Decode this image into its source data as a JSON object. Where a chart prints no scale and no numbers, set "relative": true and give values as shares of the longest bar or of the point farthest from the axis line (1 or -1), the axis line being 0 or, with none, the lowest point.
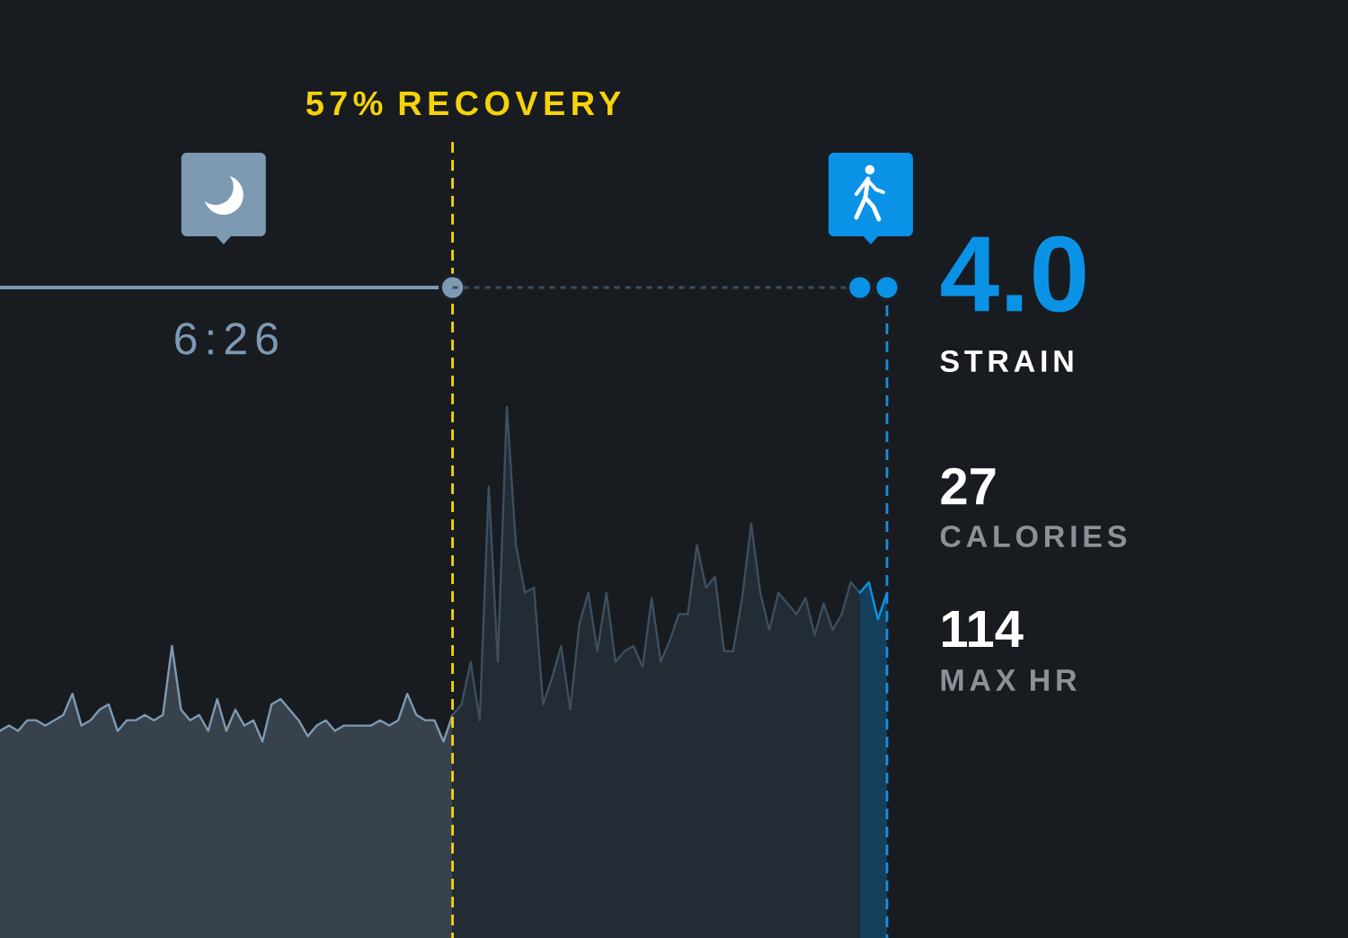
{
  "chart_data": {
    "type": "area",
    "relative": true,
    "tick_labels": false,
    "categories": [
      null,
      null,
      null,
      null,
      null,
      null,
      null,
      null,
      null,
      null,
      null,
      null,
      null,
      null,
      null,
      null,
      null,
      null,
      null,
      null,
      null,
      null,
      null,
      null,
      null,
      null,
      null,
      null,
      null,
      null,
      null,
      null,
      null,
      null,
      null,
      null,
      null,
      null,
      null,
      null,
      null,
      null,
      null,
      null,
      null,
      null,
      null,
      null,
      null,
      null,
      null,
      null,
      null,
      null,
      null,
      null,
      null,
      null,
      null,
      null,
      null,
      null,
      null,
      null,
      null,
      null,
      null,
      null,
      null,
      null,
      null,
      null,
      null,
      null,
      null,
      null,
      null,
      null,
      null,
      null,
      null,
      null,
      null,
      null,
      null,
      null,
      null,
      null,
      null,
      null,
      null,
      null,
      null,
      null,
      null,
      null,
      null,
      null,
      null
    ],
    "series": [
      {
        "color": "#7e9ab3",
        "values": [
          0.39,
          0.4,
          0.39,
          0.41,
          0.41,
          0.4,
          0.41,
          0.42,
          0.46,
          0.4,
          0.41,
          0.43,
          0.44,
          0.39,
          0.41,
          0.41,
          0.42,
          0.41,
          0.42,
          0.55,
          0.43,
          0.41,
          0.42,
          0.39,
          0.45,
          0.39,
          0.43,
          0.4,
          0.41,
          0.37,
          0.44,
          0.45,
          0.43,
          0.41,
          0.38,
          0.4,
          0.41,
          0.39,
          0.4,
          0.4,
          0.4,
          0.4,
          0.41,
          0.4,
          0.41,
          0.46,
          0.42,
          0.41,
          0.41,
          0.37,
          0.42,
          null,
          null,
          null,
          null,
          null,
          null,
          null,
          null,
          null,
          null,
          null,
          null,
          null,
          null,
          null,
          null,
          null,
          null,
          null,
          null,
          null,
          null,
          null,
          null,
          null,
          null,
          null,
          null,
          null,
          null,
          null,
          null,
          null,
          null,
          null,
          null,
          null,
          null,
          null,
          null,
          null,
          null,
          null,
          null,
          null,
          null,
          null,
          null
        ]
      },
      {
        "color": "#3d4f5f",
        "values": [
          null,
          null,
          null,
          null,
          null,
          null,
          null,
          null,
          null,
          null,
          null,
          null,
          null,
          null,
          null,
          null,
          null,
          null,
          null,
          null,
          null,
          null,
          null,
          null,
          null,
          null,
          null,
          null,
          null,
          null,
          null,
          null,
          null,
          null,
          null,
          null,
          null,
          null,
          null,
          null,
          null,
          null,
          null,
          null,
          null,
          null,
          null,
          null,
          null,
          null,
          0.42,
          0.44,
          0.52,
          0.41,
          0.85,
          0.52,
          1,
          0.74,
          0.65,
          0.66,
          0.44,
          0.49,
          0.55,
          0.43,
          0.59,
          0.65,
          0.54,
          0.65,
          0.52,
          0.54,
          0.55,
          0.51,
          0.64,
          0.52,
          0.56,
          0.61,
          0.61,
          0.74,
          0.66,
          0.68,
          0.54,
          0.54,
          0.64,
          0.78,
          0.65,
          0.58,
          0.65,
          0.63,
          0.61,
          0.64,
          0.57,
          0.63,
          0.58,
          0.61,
          0.67,
          0.65,
          null,
          null,
          null
        ]
      },
      {
        "color": "#0a93e6",
        "values": [
          null,
          null,
          null,
          null,
          null,
          null,
          null,
          null,
          null,
          null,
          null,
          null,
          null,
          null,
          null,
          null,
          null,
          null,
          null,
          null,
          null,
          null,
          null,
          null,
          null,
          null,
          null,
          null,
          null,
          null,
          null,
          null,
          null,
          null,
          null,
          null,
          null,
          null,
          null,
          null,
          null,
          null,
          null,
          null,
          null,
          null,
          null,
          null,
          null,
          null,
          null,
          null,
          null,
          null,
          null,
          null,
          null,
          null,
          null,
          null,
          null,
          null,
          null,
          null,
          null,
          null,
          null,
          null,
          null,
          null,
          null,
          null,
          null,
          null,
          null,
          null,
          null,
          null,
          null,
          null,
          null,
          null,
          null,
          null,
          null,
          null,
          null,
          null,
          null,
          null,
          null,
          null,
          null,
          null,
          null,
          0.65,
          0.67,
          0.6,
          0.65
        ]
      }
    ],
    "annotations": [
      "57% RECOVERY",
      "6:26",
      "4.0",
      "STRAIN",
      "27",
      "CALORIES",
      "114",
      "MAX HR"
    ]
  }
}
